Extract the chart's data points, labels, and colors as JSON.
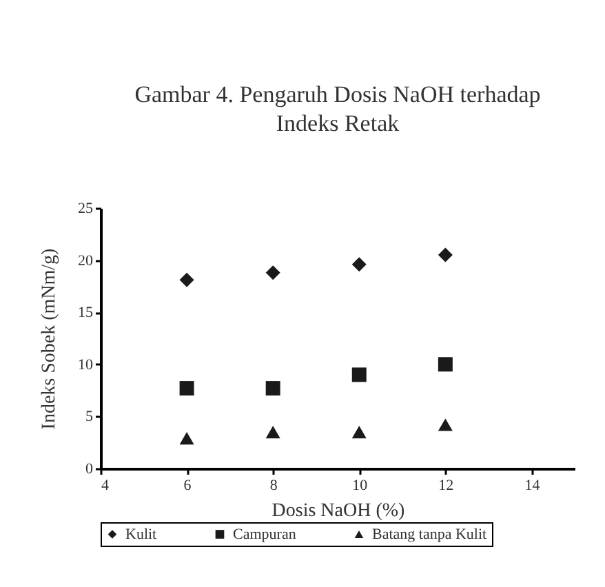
{
  "chart_data": {
    "type": "scatter",
    "title": "Gambar 4. Pengaruh Dosis NaOH terhadap Indeks Retak",
    "xlabel": "Dosis NaOH (%)",
    "ylabel": "Indeks Sobek (mNm/g)",
    "x": [
      6,
      8,
      10,
      12
    ],
    "series": [
      {
        "name": "Kulit",
        "color": "#1a1a1a",
        "marker": "diamond",
        "values": [
          18.1,
          18.8,
          19.6,
          20.5
        ]
      },
      {
        "name": "Campuran",
        "color": "#1a1a1a",
        "marker": "square",
        "values": [
          7.7,
          7.7,
          9.0,
          10.0
        ]
      },
      {
        "name": "Batang tanpa Kulit",
        "color": "#1a1a1a",
        "marker": "triangle",
        "values": [
          2.9,
          3.5,
          3.5,
          4.2
        ]
      }
    ],
    "xlim": [
      4,
      15
    ],
    "xticks": [
      4,
      6,
      8,
      10,
      12,
      14
    ],
    "ylim": [
      0,
      25
    ],
    "yticks": [
      0,
      5,
      10,
      15,
      20,
      25
    ],
    "grid": false,
    "legend": "bottom"
  }
}
